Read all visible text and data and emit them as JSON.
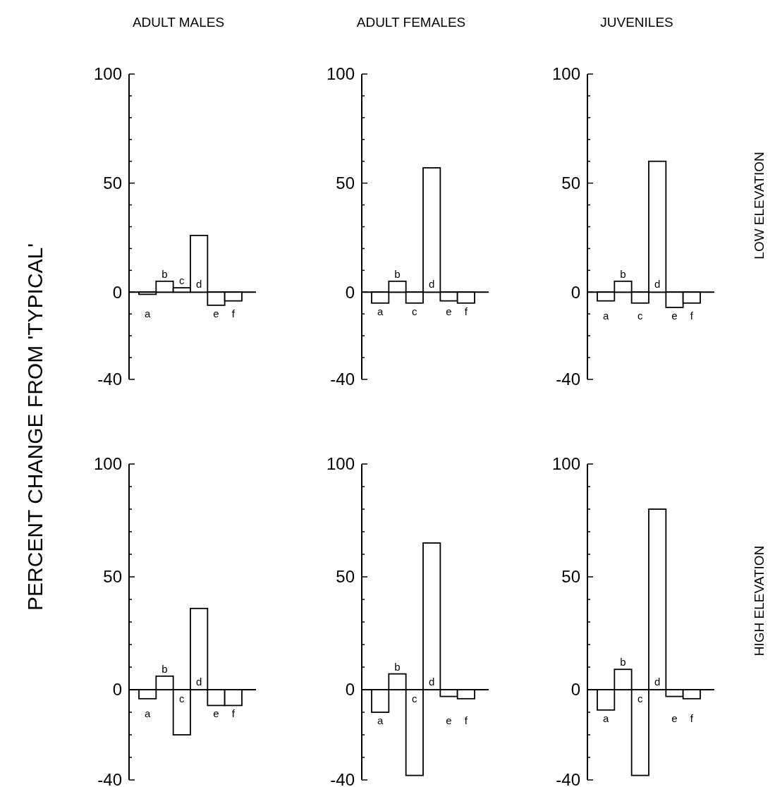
{
  "chart_data": [
    {
      "type": "bar",
      "title": "ADULT MALES",
      "ylabel": "PERCENT CHANGE FROM 'TYPICAL'",
      "categories": [
        "a",
        "b",
        "c",
        "d",
        "e",
        "f"
      ],
      "values": [
        -1,
        5,
        2,
        26,
        -6,
        -4
      ],
      "color": "#000000",
      "ylim": [
        -40,
        100
      ],
      "yticks": [
        {
          "value": -40,
          "label": "-40"
        },
        {
          "value": -30,
          "label": null
        },
        {
          "value": -20,
          "label": null
        },
        {
          "value": -10,
          "label": null
        },
        0,
        {
          "value": 10,
          "label": null
        },
        {
          "value": 20,
          "label": null
        },
        {
          "value": 30,
          "label": null
        },
        {
          "value": 40,
          "label": null
        },
        50,
        {
          "value": 60,
          "label": null
        },
        {
          "value": 70,
          "label": null
        },
        {
          "value": 80,
          "label": null
        },
        {
          "value": 90,
          "label": null
        },
        100
      ]
    },
    {
      "type": "bar",
      "title": "ADULT FEMALES",
      "categories": [
        "a",
        "b",
        "c",
        "d",
        "e",
        "f"
      ],
      "values": [
        -5,
        5,
        -5,
        57,
        -4,
        -5
      ],
      "color": "#000000",
      "ylim": [
        -40,
        100
      ],
      "yticks": [
        {
          "value": -40,
          "label": "-40"
        },
        {
          "value": -30,
          "label": null
        },
        {
          "value": -20,
          "label": null
        },
        {
          "value": -10,
          "label": null
        },
        0,
        {
          "value": 10,
          "label": null
        },
        {
          "value": 20,
          "label": null
        },
        {
          "value": 30,
          "label": null
        },
        {
          "value": 40,
          "label": null
        },
        50,
        {
          "value": 60,
          "label": null
        },
        {
          "value": 70,
          "label": null
        },
        {
          "value": 80,
          "label": null
        },
        {
          "value": 90,
          "label": null
        },
        100
      ]
    },
    {
      "type": "bar",
      "title": "JUVENILES",
      "y2label": "LOW ELEVATION",
      "categories": [
        "a",
        "b",
        "c",
        "d",
        "e",
        "f"
      ],
      "values": [
        -4,
        5,
        -5,
        60,
        -7,
        -5
      ],
      "color": "#000000",
      "ylim": [
        -40,
        100
      ],
      "yticks": [
        {
          "value": -40,
          "label": "-40"
        },
        {
          "value": -30,
          "label": null
        },
        {
          "value": -20,
          "label": null
        },
        {
          "value": -10,
          "label": null
        },
        0,
        {
          "value": 10,
          "label": null
        },
        {
          "value": 20,
          "label": null
        },
        {
          "value": 30,
          "label": null
        },
        {
          "value": 40,
          "label": null
        },
        50,
        {
          "value": 60,
          "label": null
        },
        {
          "value": 70,
          "label": null
        },
        {
          "value": 80,
          "label": null
        },
        {
          "value": 90,
          "label": null
        },
        100
      ]
    },
    {
      "type": "bar",
      "categories": [
        "a",
        "b",
        "c",
        "d",
        "e",
        "f"
      ],
      "values": [
        -4,
        6,
        -20,
        36,
        -7,
        -7
      ],
      "color": "#000000",
      "ylim": [
        -40,
        100
      ],
      "yticks": [
        {
          "value": -40,
          "label": "-40"
        },
        {
          "value": -30,
          "label": null
        },
        {
          "value": -20,
          "label": null
        },
        {
          "value": -10,
          "label": null
        },
        0,
        {
          "value": 10,
          "label": null
        },
        {
          "value": 20,
          "label": null
        },
        {
          "value": 30,
          "label": null
        },
        {
          "value": 40,
          "label": null
        },
        50,
        {
          "value": 60,
          "label": null
        },
        {
          "value": 70,
          "label": null
        },
        {
          "value": 80,
          "label": null
        },
        {
          "value": 90,
          "label": null
        },
        100
      ]
    },
    {
      "type": "bar",
      "categories": [
        "a",
        "b",
        "c",
        "d",
        "e",
        "f"
      ],
      "values": [
        -10,
        7,
        -38,
        65,
        -3,
        -4
      ],
      "color": "#000000",
      "ylim": [
        -40,
        100
      ],
      "yticks": [
        {
          "value": -40,
          "label": "-40"
        },
        {
          "value": -30,
          "label": null
        },
        {
          "value": -20,
          "label": null
        },
        {
          "value": -10,
          "label": null
        },
        0,
        {
          "value": 10,
          "label": null
        },
        {
          "value": 20,
          "label": null
        },
        {
          "value": 30,
          "label": null
        },
        {
          "value": 40,
          "label": null
        },
        50,
        {
          "value": 60,
          "label": null
        },
        {
          "value": 70,
          "label": null
        },
        {
          "value": 80,
          "label": null
        },
        {
          "value": 90,
          "label": null
        },
        100
      ]
    },
    {
      "type": "bar",
      "y2label": "HIGH ELEVATION",
      "categories": [
        "a",
        "b",
        "c",
        "d",
        "e",
        "f"
      ],
      "values": [
        -9,
        9,
        -38,
        80,
        -3,
        -4
      ],
      "color": "#000000",
      "ylim": [
        -40,
        100
      ],
      "yticks": [
        {
          "value": -40,
          "label": "-40"
        },
        {
          "value": -30,
          "label": null
        },
        {
          "value": -20,
          "label": null
        },
        {
          "value": -10,
          "label": null
        },
        0,
        {
          "value": 10,
          "label": null
        },
        {
          "value": 20,
          "label": null
        },
        {
          "value": 30,
          "label": null
        },
        {
          "value": 40,
          "label": null
        },
        50,
        {
          "value": 60,
          "label": null
        },
        {
          "value": 70,
          "label": null
        },
        {
          "value": 80,
          "label": null
        },
        {
          "value": 90,
          "label": null
        },
        100
      ]
    }
  ]
}
